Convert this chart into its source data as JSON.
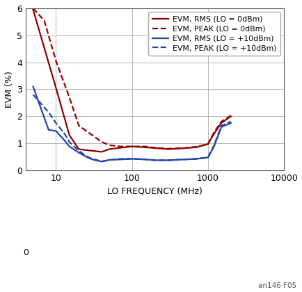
{
  "xlabel": "LO FREQUENCY (MHz)",
  "ylabel": "EVM (%)",
  "xlim": [
    4,
    10000
  ],
  "ylim": [
    0,
    6
  ],
  "yticks": [
    0,
    1,
    2,
    3,
    4,
    5,
    6
  ],
  "xticks": [
    10,
    100,
    1000,
    10000
  ],
  "xtick_labels": [
    "10",
    "100",
    "1000",
    "10000"
  ],
  "background_color": "#ffffff",
  "annotation": "an146 F05",
  "grid_color": "#aaaaaa",
  "spine_color": "#555555",
  "series": [
    {
      "label": "EVM, RMS (LO = 0dBm)",
      "color": "#8B0000",
      "linestyle": "solid",
      "linewidth": 1.6,
      "x": [
        5,
        10,
        15,
        20,
        30,
        40,
        50,
        70,
        100,
        150,
        200,
        300,
        500,
        700,
        1000,
        1200,
        1500,
        2000
      ],
      "y": [
        5.95,
        3.05,
        1.3,
        0.78,
        0.72,
        0.68,
        0.78,
        0.83,
        0.88,
        0.85,
        0.82,
        0.78,
        0.82,
        0.85,
        0.97,
        1.35,
        1.75,
        2.0
      ]
    },
    {
      "label": "EVM, PEAK (LO = 0dBm)",
      "color": "#8B0000",
      "linestyle": "dashed",
      "linewidth": 1.6,
      "x": [
        5,
        7,
        10,
        15,
        20,
        30,
        40,
        50,
        70,
        100,
        150,
        200,
        300,
        500,
        700,
        1000,
        1200,
        1500,
        2000
      ],
      "y": [
        6.0,
        5.55,
        4.05,
        2.7,
        1.65,
        1.3,
        1.05,
        0.93,
        0.88,
        0.88,
        0.88,
        0.83,
        0.8,
        0.82,
        0.87,
        0.97,
        1.4,
        1.8,
        2.02
      ]
    },
    {
      "label": "EVM, RMS (LO = +10dBm)",
      "color": "#2244aa",
      "linestyle": "solid",
      "linewidth": 1.6,
      "x": [
        5,
        8,
        10,
        13,
        15,
        20,
        25,
        30,
        40,
        50,
        70,
        100,
        150,
        200,
        300,
        500,
        700,
        1000,
        1200,
        1500,
        2000
      ],
      "y": [
        3.1,
        1.5,
        1.45,
        1.1,
        0.88,
        0.65,
        0.5,
        0.4,
        0.32,
        0.38,
        0.4,
        0.42,
        0.4,
        0.37,
        0.37,
        0.4,
        0.42,
        0.47,
        0.88,
        1.6,
        1.75
      ]
    },
    {
      "label": "EVM, PEAK (LO = +10dBm)",
      "color": "#2244aa",
      "linestyle": "dashed",
      "linewidth": 1.6,
      "x": [
        5,
        8,
        10,
        13,
        15,
        20,
        25,
        30,
        40,
        50,
        70,
        100,
        150,
        200,
        300,
        500,
        700,
        1000,
        1200,
        1500,
        2000
      ],
      "y": [
        2.8,
        2.15,
        1.75,
        1.35,
        1.05,
        0.72,
        0.52,
        0.42,
        0.33,
        0.38,
        0.42,
        0.43,
        0.4,
        0.37,
        0.37,
        0.4,
        0.42,
        0.48,
        0.92,
        1.65,
        1.8
      ]
    }
  ],
  "legend": {
    "loc": "upper right",
    "fontsize": 7.8,
    "handlelength": 2.2,
    "handletextpad": 0.5,
    "borderpad": 0.5,
    "labelspacing": 0.35,
    "frameon": true,
    "edgecolor": "#aaaaaa"
  },
  "figsize": [
    4.35,
    4.2
  ],
  "dpi": 100
}
